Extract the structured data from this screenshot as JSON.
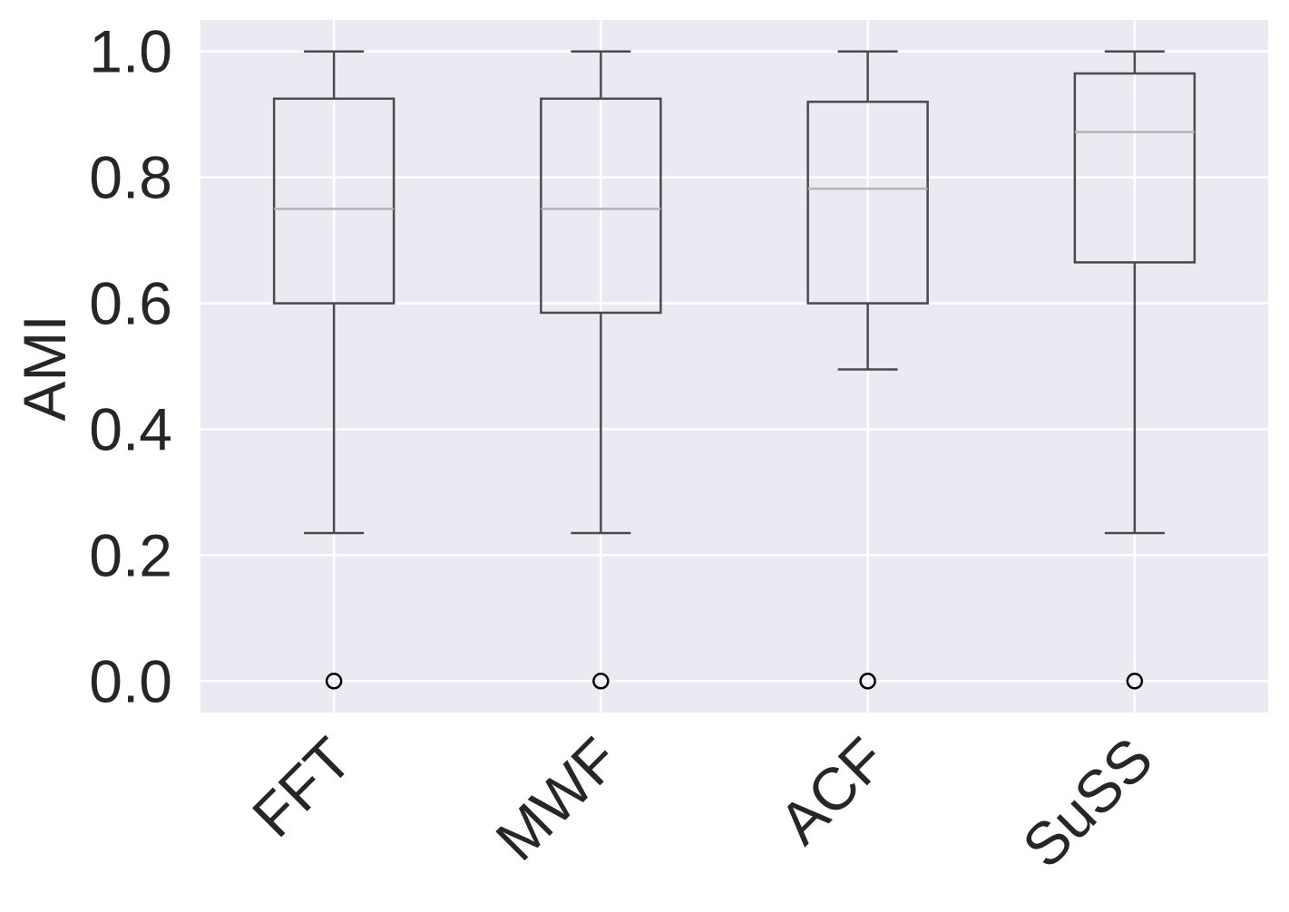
{
  "chart_data": {
    "type": "box",
    "title": "",
    "xlabel": "",
    "ylabel": "AMI",
    "ylim": [
      -0.05,
      1.05
    ],
    "yticks": [
      "0.0",
      "0.2",
      "0.4",
      "0.6",
      "0.8",
      "1.0"
    ],
    "grid": true,
    "categories": [
      "FFT",
      "MWF",
      "ACF",
      "SuSS"
    ],
    "boxes": [
      {
        "category": "FFT",
        "whisker_low": 0.235,
        "q1": 0.6,
        "median": 0.75,
        "q3": 0.925,
        "whisker_high": 1.0,
        "outliers": [
          0.0
        ]
      },
      {
        "category": "MWF",
        "whisker_low": 0.235,
        "q1": 0.585,
        "median": 0.75,
        "q3": 0.925,
        "whisker_high": 1.0,
        "outliers": [
          0.0
        ]
      },
      {
        "category": "ACF",
        "whisker_low": 0.495,
        "q1": 0.6,
        "median": 0.782,
        "q3": 0.92,
        "whisker_high": 1.0,
        "outliers": [
          0.0
        ]
      },
      {
        "category": "SuSS",
        "whisker_low": 0.235,
        "q1": 0.665,
        "median": 0.872,
        "q3": 0.965,
        "whisker_high": 1.0,
        "outliers": [
          0.0
        ]
      }
    ],
    "colors": {
      "background": "#eaeaf2",
      "grid": "#ffffff",
      "box_line": "#4a4a4a",
      "median": "#b3b3b3",
      "outlier_edge": "#000000",
      "text": "#262626"
    }
  }
}
